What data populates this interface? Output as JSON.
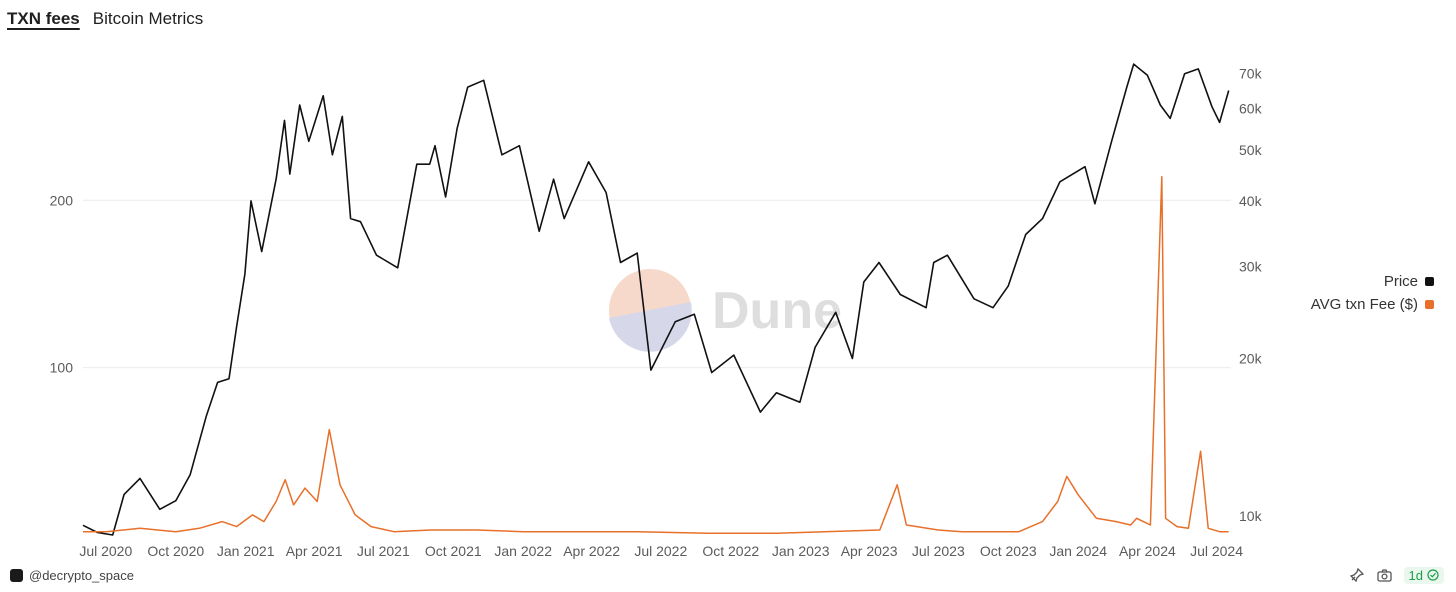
{
  "tabs": [
    {
      "label": "TXN fees",
      "active": true
    },
    {
      "label": "Bitcoin Metrics",
      "active": false
    }
  ],
  "footer": {
    "user": "@decrypto_space",
    "refresh": "1d"
  },
  "watermark": "Dune",
  "colors": {
    "price": "#111111",
    "fee": "#e8702a",
    "grid": "#ececec"
  },
  "icons": [
    "user-avatar-icon",
    "pin-icon",
    "camera-icon",
    "check-circle-icon"
  ],
  "chart_data": {
    "type": "line",
    "title": "",
    "x_tick_labels": [
      "Jul 2020",
      "Oct 2020",
      "Jan 2021",
      "Apr 2021",
      "Jul 2021",
      "Oct 2021",
      "Jan 2022",
      "Apr 2022",
      "Jul 2022",
      "Oct 2022",
      "Jan 2023",
      "Apr 2023",
      "Jul 2023",
      "Oct 2023",
      "Jan 2024",
      "Apr 2024",
      "Jul 2024"
    ],
    "left_axis": {
      "ticks": [
        100,
        200
      ],
      "series": "AVG txn Fee ($)",
      "ylim": [
        0,
        285
      ]
    },
    "right_axis": {
      "ticks": [
        "10k",
        "20k",
        "30k",
        "40k",
        "50k",
        "60k",
        "70k"
      ],
      "scale": "log",
      "series": "Price",
      "ylim": [
        9200,
        75000
      ]
    },
    "legend": {
      "position": "right",
      "items": [
        "Price",
        "AVG txn Fee ($)"
      ]
    },
    "series": [
      {
        "name": "Price",
        "axis": "right",
        "points": [
          [
            "2020-06-01",
            9600
          ],
          [
            "2020-06-20",
            9300
          ],
          [
            "2020-07-10",
            9200
          ],
          [
            "2020-07-25",
            11000
          ],
          [
            "2020-08-15",
            11800
          ],
          [
            "2020-09-10",
            10300
          ],
          [
            "2020-10-01",
            10700
          ],
          [
            "2020-10-20",
            12000
          ],
          [
            "2020-11-10",
            15500
          ],
          [
            "2020-11-25",
            18000
          ],
          [
            "2020-12-10",
            18300
          ],
          [
            "2020-12-20",
            23000
          ],
          [
            "2020-12-31",
            29000
          ],
          [
            "2021-01-08",
            40000
          ],
          [
            "2021-01-22",
            32000
          ],
          [
            "2021-02-10",
            44000
          ],
          [
            "2021-02-21",
            57000
          ],
          [
            "2021-02-28",
            45000
          ],
          [
            "2021-03-13",
            61000
          ],
          [
            "2021-03-25",
            52000
          ],
          [
            "2021-04-13",
            63500
          ],
          [
            "2021-04-25",
            49000
          ],
          [
            "2021-05-08",
            58000
          ],
          [
            "2021-05-19",
            37000
          ],
          [
            "2021-06-01",
            36500
          ],
          [
            "2021-06-22",
            31500
          ],
          [
            "2021-07-20",
            29800
          ],
          [
            "2021-08-14",
            47000
          ],
          [
            "2021-08-31",
            47000
          ],
          [
            "2021-09-07",
            51000
          ],
          [
            "2021-09-21",
            40700
          ],
          [
            "2021-10-06",
            55000
          ],
          [
            "2021-10-20",
            66000
          ],
          [
            "2021-11-10",
            68000
          ],
          [
            "2021-12-04",
            49000
          ],
          [
            "2021-12-27",
            51000
          ],
          [
            "2022-01-22",
            35000
          ],
          [
            "2022-02-10",
            44000
          ],
          [
            "2022-02-24",
            37000
          ],
          [
            "2022-03-28",
            47500
          ],
          [
            "2022-04-20",
            41500
          ],
          [
            "2022-05-09",
            30500
          ],
          [
            "2022-05-31",
            31800
          ],
          [
            "2022-06-18",
            19000
          ],
          [
            "2022-07-20",
            23500
          ],
          [
            "2022-08-14",
            24300
          ],
          [
            "2022-09-06",
            18800
          ],
          [
            "2022-10-05",
            20300
          ],
          [
            "2022-11-09",
            15800
          ],
          [
            "2022-11-30",
            17200
          ],
          [
            "2022-12-31",
            16500
          ],
          [
            "2023-01-20",
            21000
          ],
          [
            "2023-02-16",
            24500
          ],
          [
            "2023-03-10",
            20000
          ],
          [
            "2023-03-25",
            28000
          ],
          [
            "2023-04-14",
            30500
          ],
          [
            "2023-05-12",
            26500
          ],
          [
            "2023-06-15",
            25000
          ],
          [
            "2023-06-25",
            30500
          ],
          [
            "2023-07-13",
            31500
          ],
          [
            "2023-08-17",
            26000
          ],
          [
            "2023-09-11",
            25000
          ],
          [
            "2023-10-01",
            27500
          ],
          [
            "2023-10-24",
            34500
          ],
          [
            "2023-11-15",
            37000
          ],
          [
            "2023-12-08",
            43500
          ],
          [
            "2024-01-10",
            46500
          ],
          [
            "2024-01-23",
            39500
          ],
          [
            "2024-02-14",
            52000
          ],
          [
            "2024-03-05",
            66000
          ],
          [
            "2024-03-14",
            73000
          ],
          [
            "2024-04-01",
            69500
          ],
          [
            "2024-04-18",
            61000
          ],
          [
            "2024-05-01",
            57500
          ],
          [
            "2024-05-20",
            70000
          ],
          [
            "2024-06-07",
            71500
          ],
          [
            "2024-06-25",
            60500
          ],
          [
            "2024-07-05",
            56500
          ],
          [
            "2024-07-17",
            65000
          ]
        ]
      },
      {
        "name": "AVG txn Fee ($)",
        "axis": "left",
        "points": [
          [
            "2020-06-01",
            2
          ],
          [
            "2020-07-01",
            2
          ],
          [
            "2020-08-15",
            4
          ],
          [
            "2020-10-01",
            2
          ],
          [
            "2020-11-01",
            4
          ],
          [
            "2020-12-01",
            8
          ],
          [
            "2020-12-20",
            5
          ],
          [
            "2021-01-10",
            12
          ],
          [
            "2021-01-25",
            8
          ],
          [
            "2021-02-10",
            20
          ],
          [
            "2021-02-22",
            33
          ],
          [
            "2021-03-05",
            18
          ],
          [
            "2021-03-20",
            28
          ],
          [
            "2021-04-05",
            20
          ],
          [
            "2021-04-21",
            63
          ],
          [
            "2021-05-05",
            30
          ],
          [
            "2021-05-25",
            12
          ],
          [
            "2021-06-15",
            5
          ],
          [
            "2021-07-15",
            2
          ],
          [
            "2021-09-01",
            3
          ],
          [
            "2021-11-01",
            3
          ],
          [
            "2022-01-01",
            2
          ],
          [
            "2022-03-01",
            2
          ],
          [
            "2022-06-01",
            2
          ],
          [
            "2022-09-01",
            1
          ],
          [
            "2022-12-01",
            1
          ],
          [
            "2023-02-01",
            2
          ],
          [
            "2023-04-15",
            3
          ],
          [
            "2023-05-08",
            30
          ],
          [
            "2023-05-20",
            6
          ],
          [
            "2023-07-01",
            3
          ],
          [
            "2023-08-01",
            2
          ],
          [
            "2023-10-15",
            2
          ],
          [
            "2023-11-15",
            8
          ],
          [
            "2023-12-05",
            20
          ],
          [
            "2023-12-17",
            35
          ],
          [
            "2024-01-01",
            24
          ],
          [
            "2024-01-25",
            10
          ],
          [
            "2024-02-20",
            8
          ],
          [
            "2024-03-10",
            6
          ],
          [
            "2024-03-18",
            10
          ],
          [
            "2024-04-05",
            6
          ],
          [
            "2024-04-20",
            214
          ],
          [
            "2024-04-25",
            10
          ],
          [
            "2024-05-10",
            5
          ],
          [
            "2024-05-25",
            4
          ],
          [
            "2024-06-10",
            50
          ],
          [
            "2024-06-20",
            4
          ],
          [
            "2024-07-05",
            2
          ],
          [
            "2024-07-17",
            2
          ]
        ]
      }
    ]
  }
}
